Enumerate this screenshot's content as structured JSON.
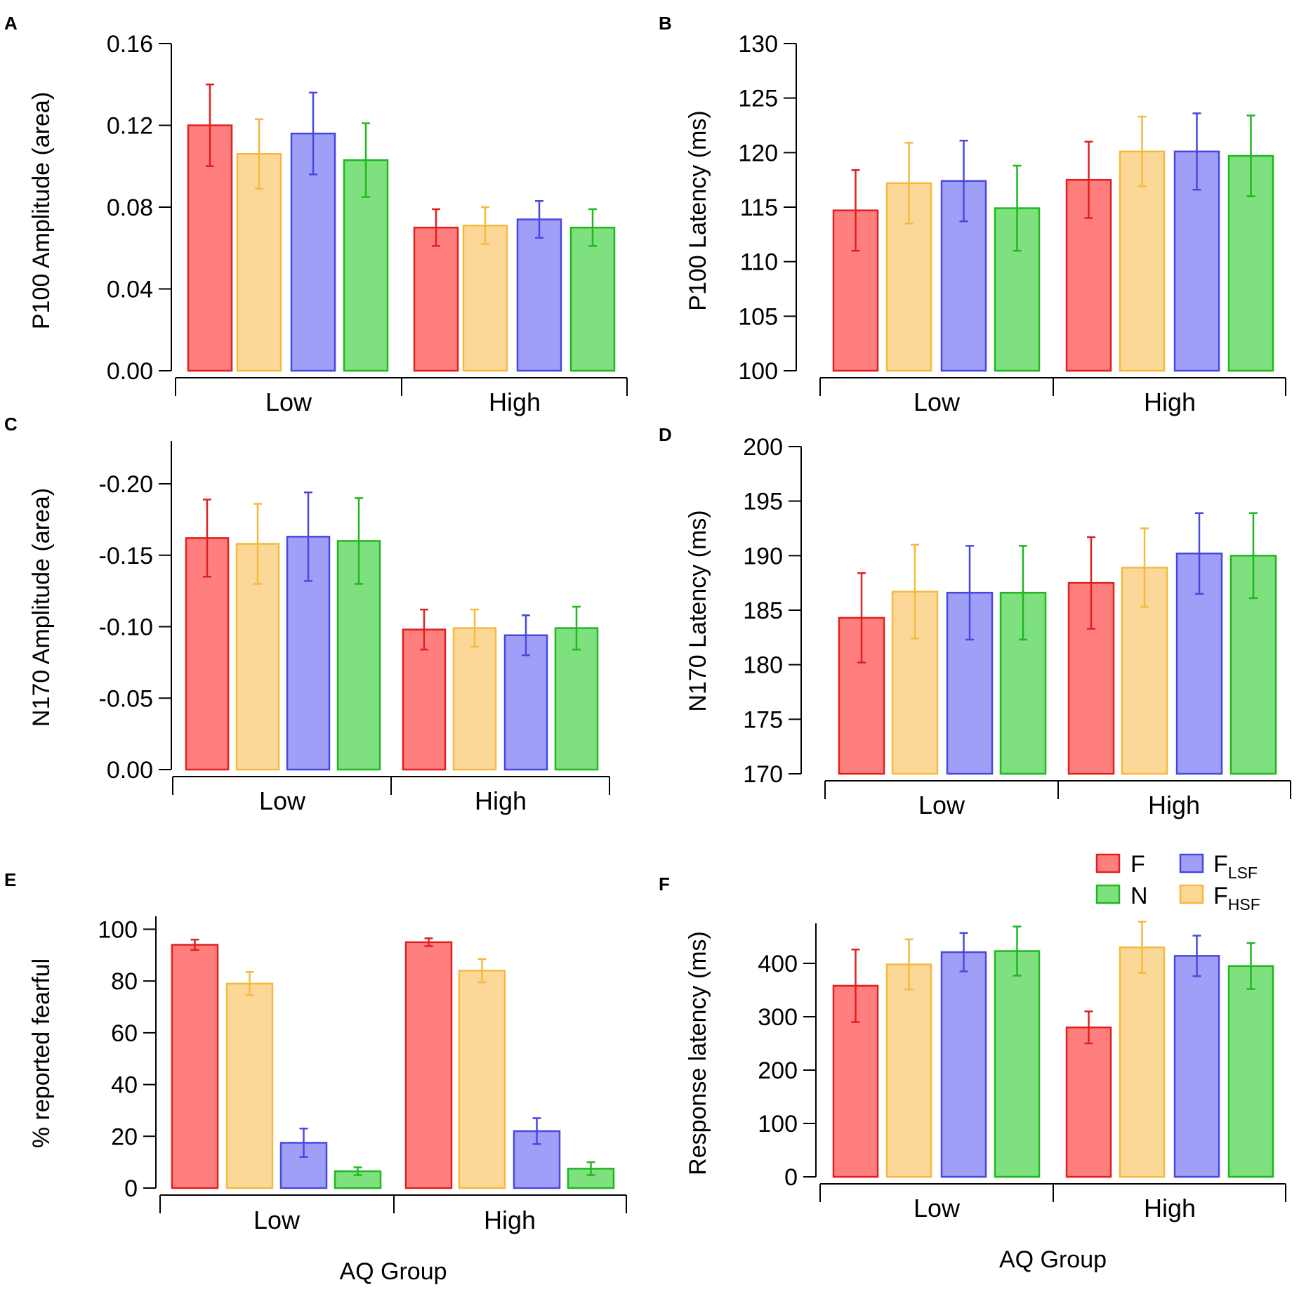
{
  "colors": {
    "F": {
      "fill": "#ff7f7f",
      "stroke": "#e02020"
    },
    "FHSF": {
      "fill": "#fcd898",
      "stroke": "#f5b93e"
    },
    "FLSF": {
      "fill": "#9f9ff8",
      "stroke": "#4848e0"
    },
    "N": {
      "fill": "#7fe07f",
      "stroke": "#1fb81f"
    }
  },
  "legend": {
    "items": [
      {
        "key": "F",
        "main": "F",
        "sub": ""
      },
      {
        "key": "FLSF",
        "main": "F",
        "sub": "LSF"
      },
      {
        "key": "N",
        "main": "N",
        "sub": ""
      },
      {
        "key": "FHSF",
        "main": "F",
        "sub": "HSF"
      }
    ]
  },
  "chart_data": [
    {
      "panel": "A",
      "type": "bar",
      "ylabel": "P100 Amplitude (area)",
      "xlabel": "",
      "categories": [
        "Low",
        "High"
      ],
      "series_keys": [
        "F",
        "FHSF",
        "FLSF",
        "N"
      ],
      "series": [
        {
          "name": "F",
          "values": [
            0.12,
            0.07
          ],
          "errors": [
            0.02,
            0.009
          ]
        },
        {
          "name": "F_HSF",
          "values": [
            0.106,
            0.071
          ],
          "errors": [
            0.017,
            0.009
          ]
        },
        {
          "name": "F_LSF",
          "values": [
            0.116,
            0.074
          ],
          "errors": [
            0.02,
            0.009
          ]
        },
        {
          "name": "N",
          "values": [
            0.103,
            0.07
          ],
          "errors": [
            0.018,
            0.009
          ]
        }
      ],
      "ylim": [
        0,
        0.16
      ],
      "yticks": [
        0,
        0.04,
        0.08,
        0.12,
        0.16
      ],
      "ytick_labels": [
        "0.00",
        "0.04",
        "0.08",
        "0.12",
        "0.16"
      ]
    },
    {
      "panel": "B",
      "type": "bar",
      "ylabel": "P100 Latency (ms)",
      "xlabel": "",
      "categories": [
        "Low",
        "High"
      ],
      "series_keys": [
        "F",
        "FHSF",
        "FLSF",
        "N"
      ],
      "series": [
        {
          "name": "F",
          "values": [
            114.7,
            117.5
          ],
          "errors": [
            3.7,
            3.5
          ]
        },
        {
          "name": "F_HSF",
          "values": [
            117.2,
            120.1
          ],
          "errors": [
            3.7,
            3.2
          ]
        },
        {
          "name": "F_LSF",
          "values": [
            117.4,
            120.1
          ],
          "errors": [
            3.7,
            3.5
          ]
        },
        {
          "name": "N",
          "values": [
            114.9,
            119.7
          ],
          "errors": [
            3.9,
            3.7
          ]
        }
      ],
      "ylim": [
        100,
        130
      ],
      "yticks": [
        100,
        105,
        110,
        115,
        120,
        125,
        130
      ],
      "ytick_labels": [
        "100",
        "105",
        "110",
        "115",
        "120",
        "125",
        "130"
      ]
    },
    {
      "panel": "C",
      "type": "bar",
      "ylabel": "N170 Amplitude (area)",
      "xlabel": "",
      "categories": [
        "Low",
        "High"
      ],
      "series_keys": [
        "F",
        "FHSF",
        "FLSF",
        "N"
      ],
      "series": [
        {
          "name": "F",
          "values": [
            -0.162,
            -0.098
          ],
          "errors": [
            0.027,
            0.014
          ]
        },
        {
          "name": "F_HSF",
          "values": [
            -0.158,
            -0.099
          ],
          "errors": [
            0.028,
            0.013
          ]
        },
        {
          "name": "F_LSF",
          "values": [
            -0.163,
            -0.094
          ],
          "errors": [
            0.031,
            0.014
          ]
        },
        {
          "name": "N",
          "values": [
            -0.16,
            -0.099
          ],
          "errors": [
            0.03,
            0.015
          ]
        }
      ],
      "ylim": [
        0,
        -0.23
      ],
      "yticks": [
        0,
        -0.05,
        -0.1,
        -0.15,
        -0.2
      ],
      "ytick_labels": [
        "0.00",
        "-0.05",
        "-0.10",
        "-0.15",
        "-0.20"
      ]
    },
    {
      "panel": "D",
      "type": "bar",
      "ylabel": "N170 Latency (ms)",
      "xlabel": "",
      "categories": [
        "Low",
        "High"
      ],
      "series_keys": [
        "F",
        "FHSF",
        "FLSF",
        "N"
      ],
      "series": [
        {
          "name": "F",
          "values": [
            184.3,
            187.5
          ],
          "errors": [
            4.1,
            4.2
          ]
        },
        {
          "name": "F_HSF",
          "values": [
            186.7,
            188.9
          ],
          "errors": [
            4.3,
            3.6
          ]
        },
        {
          "name": "F_LSF",
          "values": [
            186.6,
            190.2
          ],
          "errors": [
            4.3,
            3.7
          ]
        },
        {
          "name": "N",
          "values": [
            186.6,
            190.0
          ],
          "errors": [
            4.3,
            3.9
          ]
        }
      ],
      "ylim": [
        170,
        200
      ],
      "yticks": [
        170,
        175,
        180,
        185,
        190,
        195,
        200
      ],
      "ytick_labels": [
        "170",
        "175",
        "180",
        "185",
        "190",
        "195",
        "200"
      ]
    },
    {
      "panel": "E",
      "type": "bar",
      "ylabel": "% reported fearful",
      "xlabel": "AQ Group",
      "categories": [
        "Low",
        "High"
      ],
      "series_keys": [
        "F",
        "FHSF",
        "FLSF",
        "N"
      ],
      "series": [
        {
          "name": "F",
          "values": [
            94,
            95
          ],
          "errors": [
            2,
            1.5
          ]
        },
        {
          "name": "F_HSF",
          "values": [
            79,
            84
          ],
          "errors": [
            4.5,
            4.5
          ]
        },
        {
          "name": "F_LSF",
          "values": [
            17.5,
            22
          ],
          "errors": [
            5.5,
            5
          ]
        },
        {
          "name": "N",
          "values": [
            6.5,
            7.5
          ],
          "errors": [
            1.5,
            2.5
          ]
        }
      ],
      "ylim": [
        0,
        105
      ],
      "yticks": [
        0,
        20,
        40,
        60,
        80,
        100
      ],
      "ytick_labels": [
        "0",
        "20",
        "40",
        "60",
        "80",
        "100"
      ]
    },
    {
      "panel": "F",
      "type": "bar",
      "ylabel": "Response latency (ms)",
      "xlabel": "AQ Group",
      "categories": [
        "Low",
        "High"
      ],
      "series_keys": [
        "F",
        "FHSF",
        "FLSF",
        "N"
      ],
      "series": [
        {
          "name": "F",
          "values": [
            358,
            280
          ],
          "errors": [
            68,
            30
          ]
        },
        {
          "name": "F_HSF",
          "values": [
            398,
            430
          ],
          "errors": [
            47,
            48
          ]
        },
        {
          "name": "F_LSF",
          "values": [
            421,
            414
          ],
          "errors": [
            36,
            38
          ]
        },
        {
          "name": "N",
          "values": [
            423,
            395
          ],
          "errors": [
            46,
            43
          ]
        }
      ],
      "ylim": [
        0,
        475
      ],
      "yticks": [
        0,
        100,
        200,
        300,
        400
      ],
      "ytick_labels": [
        "0",
        "100",
        "200",
        "300",
        "400"
      ]
    }
  ]
}
